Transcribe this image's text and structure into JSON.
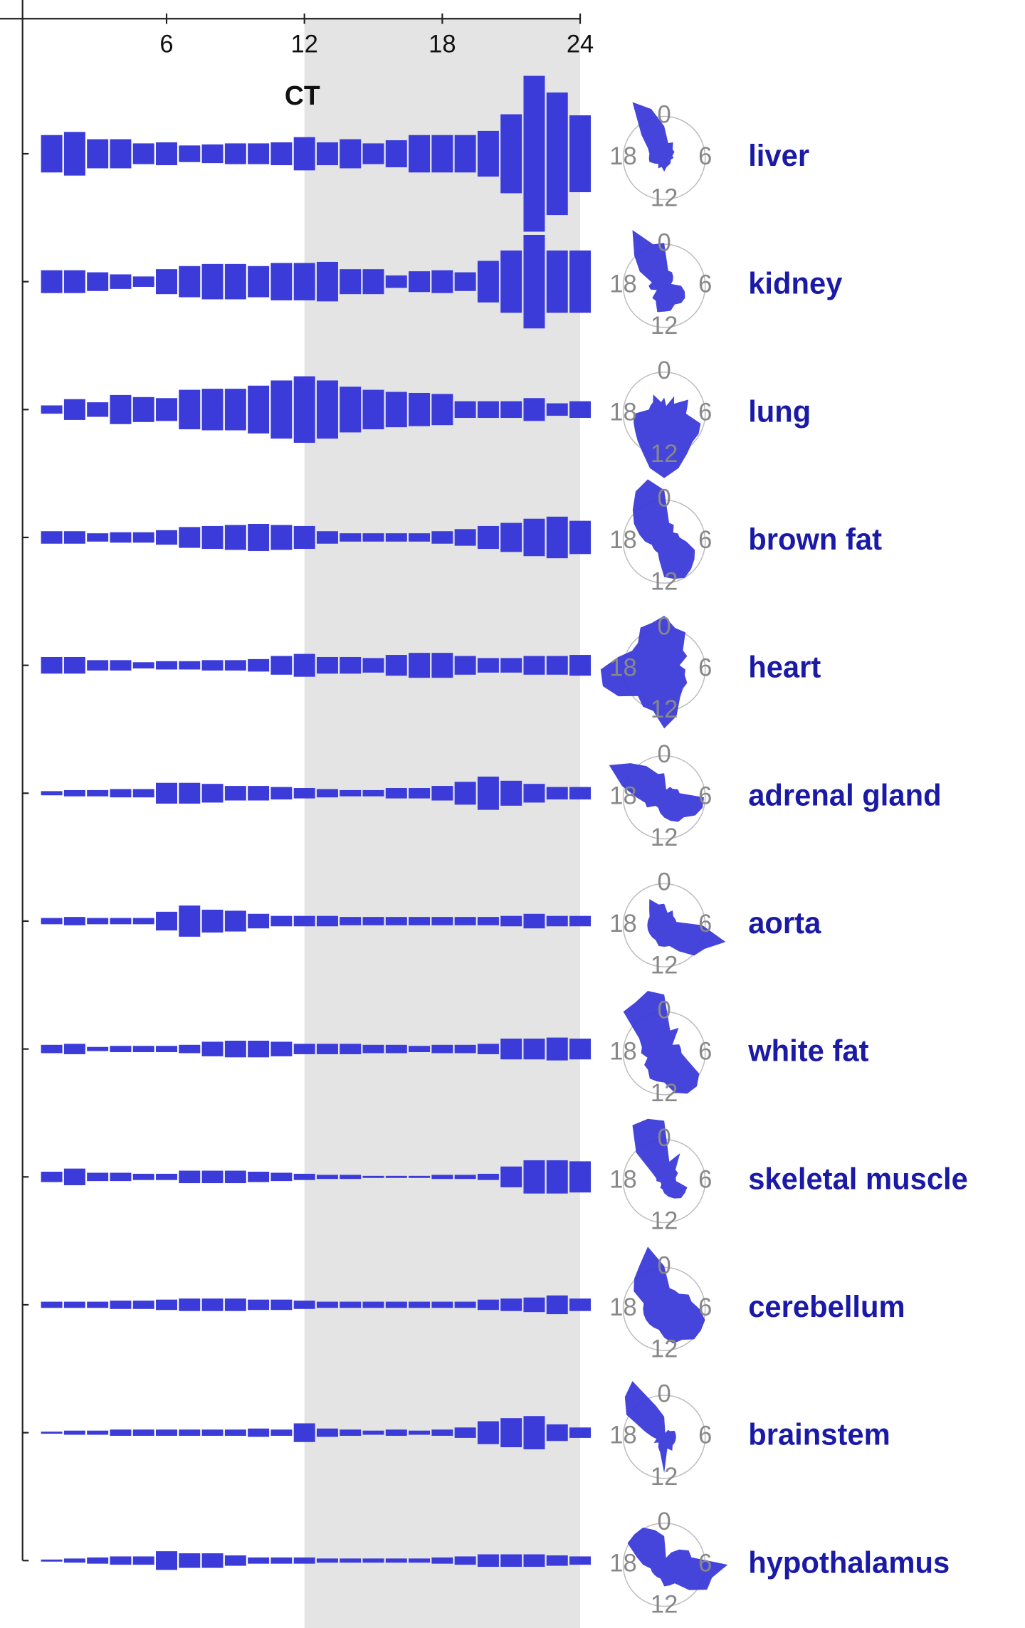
{
  "chart_data": {
    "type": "bar",
    "title": "CT",
    "color": "#3b3bd9",
    "label_color": "#1a1aa6",
    "shade": [
      12,
      24
    ],
    "xlim": [
      0,
      24
    ],
    "xticks": [
      6,
      12,
      18,
      24
    ],
    "polar_ticks": [
      0,
      6,
      12,
      18
    ],
    "x": [
      1,
      2,
      3,
      4,
      5,
      6,
      7,
      8,
      9,
      10,
      11,
      12,
      13,
      14,
      15,
      16,
      17,
      18,
      19,
      20,
      21,
      22,
      23,
      24
    ],
    "series": [
      {
        "name": "liver",
        "values": [
          36,
          42,
          28,
          28,
          20,
          22,
          16,
          18,
          20,
          20,
          22,
          32,
          22,
          28,
          20,
          26,
          36,
          36,
          36,
          44,
          76,
          150,
          118,
          74
        ]
      },
      {
        "name": "kidney",
        "values": [
          22,
          22,
          18,
          14,
          10,
          24,
          30,
          34,
          34,
          30,
          36,
          36,
          38,
          24,
          24,
          12,
          20,
          22,
          18,
          40,
          60,
          90,
          60,
          60
        ]
      },
      {
        "name": "lung",
        "values": [
          8,
          20,
          14,
          28,
          24,
          22,
          38,
          40,
          40,
          46,
          56,
          64,
          56,
          44,
          38,
          34,
          32,
          30,
          16,
          16,
          16,
          22,
          12,
          16
        ]
      },
      {
        "name": "brown fat",
        "values": [
          12,
          12,
          8,
          10,
          10,
          14,
          20,
          22,
          24,
          26,
          24,
          22,
          12,
          8,
          8,
          8,
          8,
          12,
          16,
          22,
          28,
          36,
          40,
          32
        ]
      },
      {
        "name": "heart",
        "values": [
          16,
          16,
          10,
          10,
          6,
          8,
          8,
          10,
          10,
          12,
          18,
          22,
          16,
          16,
          14,
          20,
          24,
          24,
          18,
          14,
          14,
          18,
          18,
          20
        ]
      },
      {
        "name": "adrenal gland",
        "values": [
          4,
          6,
          6,
          8,
          8,
          20,
          20,
          18,
          14,
          14,
          12,
          10,
          8,
          6,
          6,
          10,
          10,
          14,
          22,
          32,
          24,
          18,
          12,
          12
        ]
      },
      {
        "name": "aorta",
        "values": [
          6,
          8,
          6,
          6,
          6,
          18,
          30,
          22,
          20,
          14,
          10,
          10,
          10,
          8,
          8,
          8,
          8,
          8,
          8,
          8,
          10,
          14,
          10,
          10
        ]
      },
      {
        "name": "white fat",
        "values": [
          8,
          10,
          4,
          6,
          6,
          6,
          8,
          14,
          16,
          16,
          14,
          10,
          10,
          10,
          8,
          8,
          6,
          8,
          8,
          10,
          20,
          20,
          22,
          20
        ]
      },
      {
        "name": "skeletal muscle",
        "values": [
          10,
          16,
          8,
          8,
          6,
          6,
          12,
          12,
          12,
          10,
          8,
          6,
          4,
          4,
          2,
          2,
          2,
          4,
          4,
          6,
          20,
          32,
          32,
          30
        ]
      },
      {
        "name": "cerebellum",
        "values": [
          6,
          6,
          6,
          8,
          8,
          10,
          12,
          12,
          12,
          10,
          10,
          8,
          6,
          6,
          6,
          6,
          6,
          6,
          6,
          10,
          12,
          14,
          18,
          12
        ]
      },
      {
        "name": "brainstem",
        "values": [
          2,
          4,
          4,
          6,
          6,
          6,
          6,
          6,
          6,
          8,
          6,
          18,
          8,
          6,
          4,
          6,
          4,
          6,
          10,
          22,
          28,
          32,
          16,
          10
        ]
      },
      {
        "name": "hypothalamus",
        "values": [
          2,
          4,
          6,
          8,
          8,
          18,
          14,
          14,
          10,
          6,
          6,
          6,
          4,
          4,
          4,
          4,
          4,
          6,
          8,
          12,
          12,
          12,
          10,
          8
        ]
      }
    ]
  }
}
